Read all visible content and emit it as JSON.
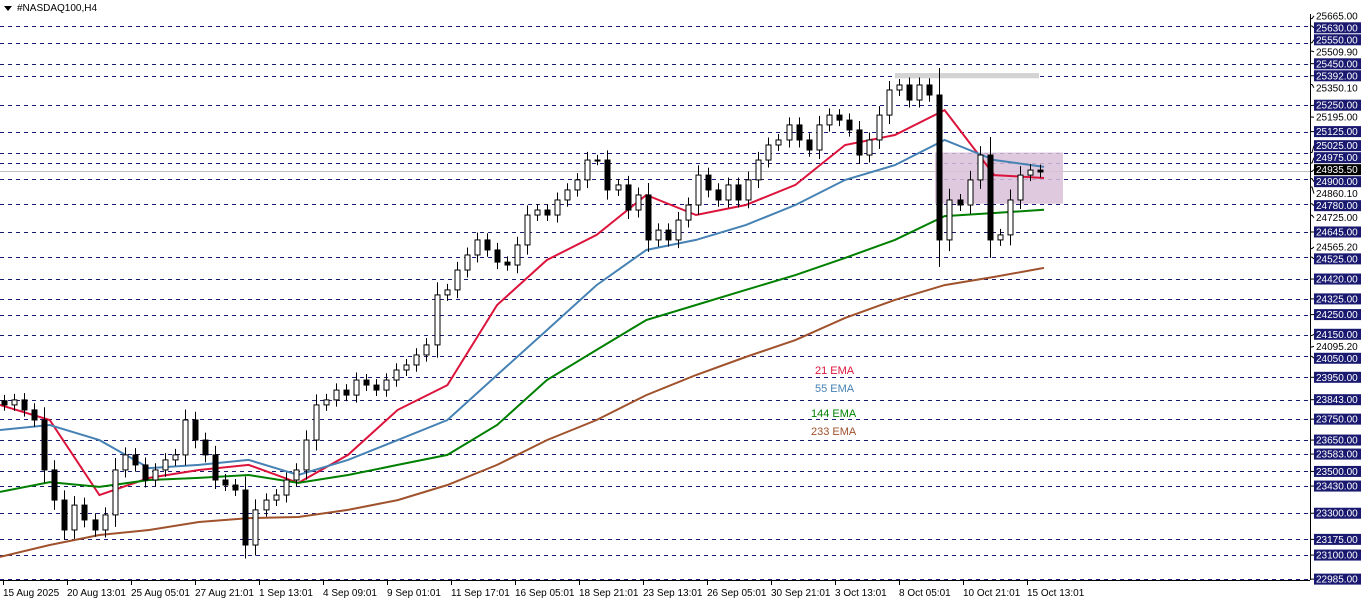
{
  "header": {
    "symbol_title": "#NASDAQ100,H4"
  },
  "colors": {
    "grid": "#191970",
    "label_bg": "#191970",
    "current_price_bg": "#000000",
    "ema21": "#dc143c",
    "ema55": "#4682b4",
    "ema144": "#008000",
    "ema233": "#a0522d",
    "zone": "#d8bfd8",
    "resistance_band": "#d3d3d3",
    "bull_body": "#ffffff",
    "bear_body": "#000000"
  },
  "chart_data": {
    "type": "candlestick",
    "title": "#NASDAQ100,H4",
    "ylim": [
      22985,
      25665
    ],
    "grid": true,
    "x_tick_labels": [
      "15 Aug 2025",
      "20 Aug 13:01",
      "25 Aug 05:01",
      "27 Aug 21:01",
      "1 Sep 13:01",
      "4 Sep 09:01",
      "9 Sep 01:01",
      "11 Sep 17:01",
      "16 Sep 05:01",
      "18 Sep 21:01",
      "23 Sep 13:01",
      "26 Sep 05:01",
      "30 Sep 21:01",
      "3 Oct 13:01",
      "8 Oct 05:01",
      "10 Oct 21:01",
      "15 Oct 13:01"
    ],
    "price_levels_highlighted": [
      "25630.00",
      "25550.00",
      "25450.00",
      "25392.00",
      "25250.00",
      "25125.00",
      "25025.00",
      "24975.00",
      "24900.00",
      "24780.00",
      "24645.00",
      "24525.00",
      "24420.00",
      "24325.00",
      "24250.00",
      "24150.00",
      "24050.00",
      "23950.00",
      "23843.00",
      "23750.00",
      "23650.00",
      "23583.00",
      "23500.00",
      "23430.00",
      "23300.00",
      "23175.00",
      "23100.00",
      "22985.00"
    ],
    "price_levels_plain": [
      "25665.00",
      "25509.90",
      "25350.10",
      "25195.00",
      "24860.10",
      "24725.00",
      "24565.20",
      "24095.20"
    ],
    "current_price": "24935.50",
    "closes": [
      23818,
      23842,
      23794,
      23746,
      23507,
      23363,
      23220,
      23339,
      23268,
      23220,
      23292,
      23507,
      23579,
      23531,
      23459,
      23507,
      23555,
      23579,
      23746,
      23650,
      23579,
      23459,
      23435,
      23411,
      23148,
      23316,
      23363,
      23387,
      23459,
      23507,
      23650,
      23818,
      23842,
      23889,
      23865,
      23937,
      23913,
      23889,
      23937,
      23985,
      24009,
      24057,
      24105,
      24344,
      24368,
      24463,
      24535,
      24607,
      24559,
      24501,
      24487,
      24583,
      24726,
      24750,
      24726,
      24798,
      24846,
      24894,
      24989,
      24989,
      24846,
      24870,
      24750,
      24822,
      24607,
      24654,
      24607,
      24702,
      24774,
      24917,
      24846,
      24798,
      24870,
      24798,
      24894,
      24989,
      25061,
      25085,
      25157,
      25085,
      25037,
      25157,
      25204,
      25180,
      25133,
      25013,
      25085,
      25204,
      25324,
      25348,
      25276,
      25348,
      25300,
      24607,
      24798,
      24774,
      24894,
      25013,
      24607,
      24631,
      24798,
      24917,
      24941,
      24932
    ],
    "series": [
      {
        "name": "21 EMA",
        "values": [
          23818,
          23746,
          23387,
          23469,
          23507,
          23531,
          23445,
          23579,
          23794,
          23913,
          24296,
          24511,
          24631,
          24822,
          24726,
          24774,
          24870,
          25061,
          25109,
          25228,
          24917,
          24903
        ]
      },
      {
        "name": "55 EMA",
        "values": [
          23698,
          23722,
          23650,
          23516,
          23531,
          23555,
          23483,
          23555,
          23650,
          23746,
          23961,
          24176,
          24391,
          24559,
          24607,
          24678,
          24774,
          24894,
          24965,
          25085,
          24989,
          24956
        ]
      },
      {
        "name": "144 EMA",
        "values": [
          23402,
          23449,
          23426,
          23459,
          23469,
          23483,
          23445,
          23483,
          23531,
          23579,
          23722,
          23937,
          24081,
          24224,
          24296,
          24368,
          24439,
          24521,
          24607,
          24721,
          24736,
          24751
        ]
      },
      {
        "name": "233 EMA",
        "values": [
          23091,
          23148,
          23196,
          23220,
          23258,
          23277,
          23282,
          23316,
          23363,
          23435,
          23531,
          23650,
          23746,
          23865,
          23961,
          24047,
          24128,
          24234,
          24320,
          24391,
          24430,
          24473
        ]
      }
    ],
    "zones": [
      {
        "kind": "consolidation-rectangle",
        "top": 25025,
        "bottom": 24780
      },
      {
        "kind": "resistance-band",
        "top": 25405,
        "bottom": 25380
      }
    ]
  }
}
